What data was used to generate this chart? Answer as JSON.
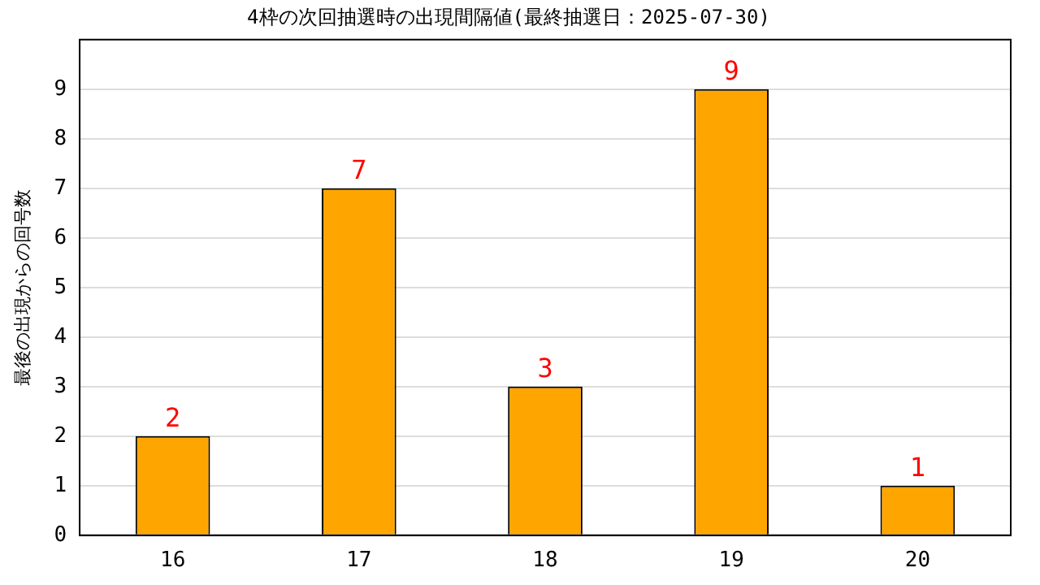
{
  "chart_data": {
    "type": "bar",
    "title": "4枠の次回抽選時の出現間隔値(最終抽選日：2025-07-30)",
    "ylabel": "最後の出現からの回号数",
    "categories": [
      "16",
      "17",
      "18",
      "19",
      "20"
    ],
    "values": [
      2,
      7,
      3,
      9,
      1
    ],
    "color": "#ffa500",
    "ylim": [
      0,
      10
    ],
    "yticks": [
      0,
      1,
      2,
      3,
      4,
      5,
      6,
      7,
      8,
      9
    ],
    "grid": "y",
    "data_labels": true,
    "legend": false
  }
}
